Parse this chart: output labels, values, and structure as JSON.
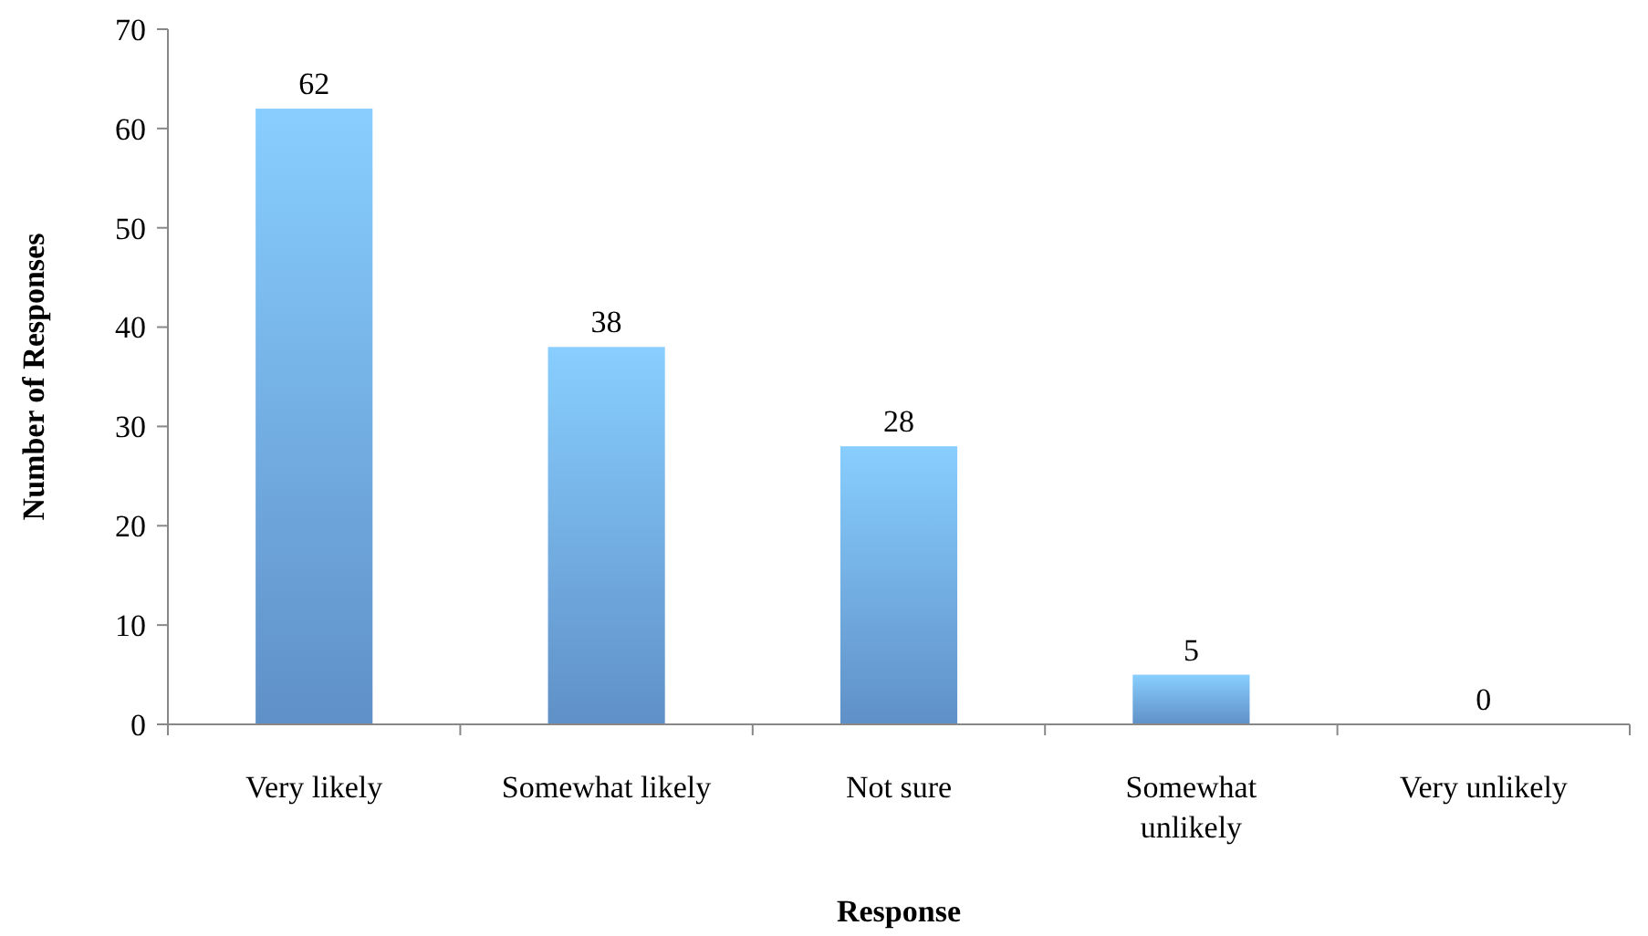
{
  "chart_data": {
    "type": "bar",
    "xlabel": "Response",
    "ylabel": "Number of Responses",
    "categories": [
      "Very likely",
      "Somewhat likely",
      "Not sure",
      "Somewhat unlikely",
      "Very unlikely"
    ],
    "values": [
      62,
      38,
      28,
      5,
      0
    ],
    "color": "#6ea6e6",
    "ylim": [
      0,
      70
    ],
    "yticks": [
      0,
      10,
      20,
      30,
      40,
      50,
      60,
      70
    ],
    "data_labels": true,
    "grid": false
  }
}
